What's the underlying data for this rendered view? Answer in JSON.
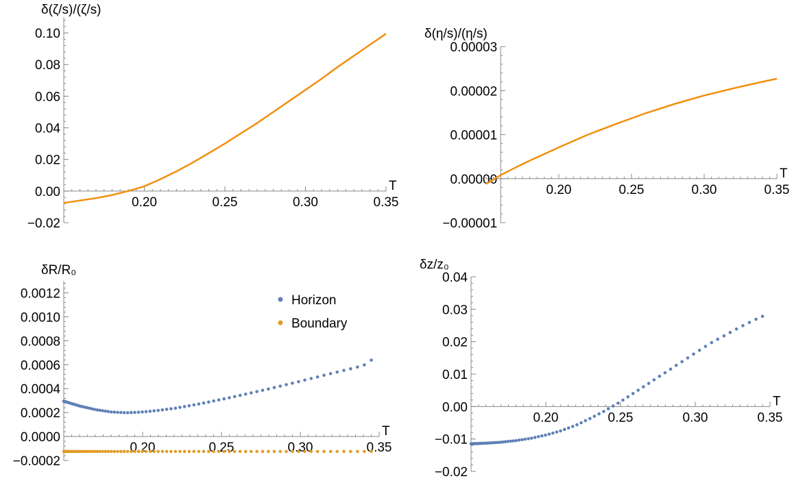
{
  "colors": {
    "line": "#F28F0E",
    "horizon": "#5E81B5",
    "boundary": "#E19C24",
    "axis": "#888888"
  },
  "chart_data": [
    {
      "type": "line",
      "xlabel": "T",
      "ylabel": "δ(ζ/s)/(ζ/s)",
      "xlim": [
        0.15,
        0.35
      ],
      "ylim": [
        -0.02,
        0.11
      ],
      "xticks": [
        {
          "v": 0.2,
          "label": "0.20"
        },
        {
          "v": 0.25,
          "label": "0.25"
        },
        {
          "v": 0.3,
          "label": "0.30"
        },
        {
          "v": 0.35,
          "label": "0.35"
        }
      ],
      "yticks": [
        {
          "v": -0.02,
          "label": "−0.02"
        },
        {
          "v": 0.0,
          "label": "0.00"
        },
        {
          "v": 0.02,
          "label": "0.02"
        },
        {
          "v": 0.04,
          "label": "0.04"
        },
        {
          "v": 0.06,
          "label": "0.06"
        },
        {
          "v": 0.08,
          "label": "0.08"
        },
        {
          "v": 0.1,
          "label": "0.10"
        }
      ],
      "series": [
        {
          "color": "#F28F0E",
          "x": [
            0.15,
            0.16,
            0.17,
            0.18,
            0.19,
            0.2,
            0.21,
            0.22,
            0.23,
            0.24,
            0.25,
            0.26,
            0.27,
            0.28,
            0.29,
            0.3,
            0.31,
            0.32,
            0.33,
            0.34,
            0.35
          ],
          "y": [
            -0.0075,
            -0.006,
            -0.0045,
            -0.0025,
            0.0,
            0.003,
            0.0075,
            0.0125,
            0.018,
            0.024,
            0.03,
            0.0365,
            0.043,
            0.05,
            0.057,
            0.064,
            0.071,
            0.0785,
            0.0855,
            0.0925,
            0.0995
          ]
        }
      ]
    },
    {
      "type": "line",
      "xlabel": "T",
      "ylabel": "δ(η/s)/(η/s)",
      "xlim": [
        0.15,
        0.35
      ],
      "ylim": [
        -1e-05,
        3e-05
      ],
      "xticks": [
        {
          "v": 0.2,
          "label": "0.20"
        },
        {
          "v": 0.25,
          "label": "0.25"
        },
        {
          "v": 0.3,
          "label": "0.30"
        },
        {
          "v": 0.35,
          "label": "0.35"
        }
      ],
      "yticks": [
        {
          "v": -1e-05,
          "label": "−0.00001"
        },
        {
          "v": 0.0,
          "label": "0.00000"
        },
        {
          "v": 1e-05,
          "label": "0.00001"
        },
        {
          "v": 2e-05,
          "label": "0.00002"
        },
        {
          "v": 3e-05,
          "label": "0.00003"
        }
      ],
      "series": [
        {
          "color": "#F28F0E",
          "x": [
            0.15,
            0.16,
            0.17,
            0.18,
            0.19,
            0.2,
            0.22,
            0.24,
            0.26,
            0.28,
            0.3,
            0.32,
            0.34,
            0.35
          ],
          "y": [
            -1.2e-06,
            8e-07,
            2.5e-06,
            4.1e-06,
            5.6e-06,
            7.1e-06,
            1e-05,
            1.25e-05,
            1.49e-05,
            1.7e-05,
            1.89e-05,
            2.05e-05,
            2.2e-05,
            2.27e-05
          ]
        }
      ]
    },
    {
      "type": "scatter",
      "xlabel": "T",
      "ylabel": "δR/R₀",
      "xlim": [
        0.15,
        0.35
      ],
      "ylim": [
        -0.0002,
        0.0013
      ],
      "xticks": [
        {
          "v": 0.2,
          "label": "0.20"
        },
        {
          "v": 0.25,
          "label": "0.25"
        },
        {
          "v": 0.3,
          "label": "0.30"
        },
        {
          "v": 0.35,
          "label": "0.35"
        }
      ],
      "yticks": [
        {
          "v": -0.0002,
          "label": "−0.0002"
        },
        {
          "v": 0.0,
          "label": "0.0000"
        },
        {
          "v": 0.0002,
          "label": "0.0002"
        },
        {
          "v": 0.0004,
          "label": "0.0004"
        },
        {
          "v": 0.0006,
          "label": "0.0006"
        },
        {
          "v": 0.0008,
          "label": "0.0008"
        },
        {
          "v": 0.001,
          "label": "0.0010"
        },
        {
          "v": 0.0012,
          "label": "0.0012"
        }
      ],
      "legend": "top-right",
      "series": [
        {
          "name": "Horizon",
          "color": "#5E81B5",
          "x": [
            0.15,
            0.16,
            0.17,
            0.18,
            0.19,
            0.2,
            0.21,
            0.22,
            0.23,
            0.24,
            0.25,
            0.26,
            0.27,
            0.28,
            0.29,
            0.3,
            0.31,
            0.32,
            0.33,
            0.34,
            0.345
          ],
          "y": [
            0.000295,
            0.000255,
            0.000225,
            0.000205,
            0.000198,
            0.000205,
            0.000218,
            0.000235,
            0.000258,
            0.000283,
            0.00031,
            0.000338,
            0.000368,
            0.000398,
            0.00043,
            0.000462,
            0.000495,
            0.000528,
            0.00056,
            0.000593,
            0.000638
          ]
        },
        {
          "name": "Boundary",
          "color": "#E19C24",
          "x": [
            0.15,
            0.16,
            0.17,
            0.18,
            0.19,
            0.2,
            0.21,
            0.22,
            0.23,
            0.24,
            0.25,
            0.26,
            0.27,
            0.28,
            0.29,
            0.3,
            0.31,
            0.32,
            0.33,
            0.34,
            0.345
          ],
          "y": [
            -0.000125,
            -0.000125,
            -0.000125,
            -0.000125,
            -0.000125,
            -0.000125,
            -0.000125,
            -0.000125,
            -0.000125,
            -0.000125,
            -0.000125,
            -0.000125,
            -0.000125,
            -0.000125,
            -0.000125,
            -0.000125,
            -0.000125,
            -0.000125,
            -0.000125,
            -0.000125,
            -0.000125
          ]
        }
      ]
    },
    {
      "type": "scatter",
      "xlabel": "T",
      "ylabel": "δz/z₀",
      "xlim": [
        0.15,
        0.35
      ],
      "ylim": [
        -0.02,
        0.04
      ],
      "xticks": [
        {
          "v": 0.2,
          "label": "0.20"
        },
        {
          "v": 0.25,
          "label": "0.25"
        },
        {
          "v": 0.3,
          "label": "0.30"
        },
        {
          "v": 0.35,
          "label": "0.35"
        }
      ],
      "yticks": [
        {
          "v": -0.02,
          "label": "−0.02"
        },
        {
          "v": -0.01,
          "label": "−0.01"
        },
        {
          "v": 0.0,
          "label": "0.00"
        },
        {
          "v": 0.01,
          "label": "0.01"
        },
        {
          "v": 0.02,
          "label": "0.02"
        },
        {
          "v": 0.03,
          "label": "0.03"
        },
        {
          "v": 0.04,
          "label": "0.04"
        }
      ],
      "series": [
        {
          "color": "#5E81B5",
          "x": [
            0.15,
            0.16,
            0.17,
            0.18,
            0.19,
            0.2,
            0.21,
            0.22,
            0.23,
            0.24,
            0.25,
            0.26,
            0.27,
            0.28,
            0.29,
            0.3,
            0.31,
            0.32,
            0.33,
            0.34,
            0.345
          ],
          "y": [
            -0.0115,
            -0.0113,
            -0.011,
            -0.0105,
            -0.0098,
            -0.0088,
            -0.0075,
            -0.0058,
            -0.0036,
            -0.0012,
            0.0015,
            0.0045,
            0.0075,
            0.0105,
            0.0135,
            0.0165,
            0.0195,
            0.022,
            0.0245,
            0.0268,
            0.0278
          ]
        }
      ]
    }
  ]
}
